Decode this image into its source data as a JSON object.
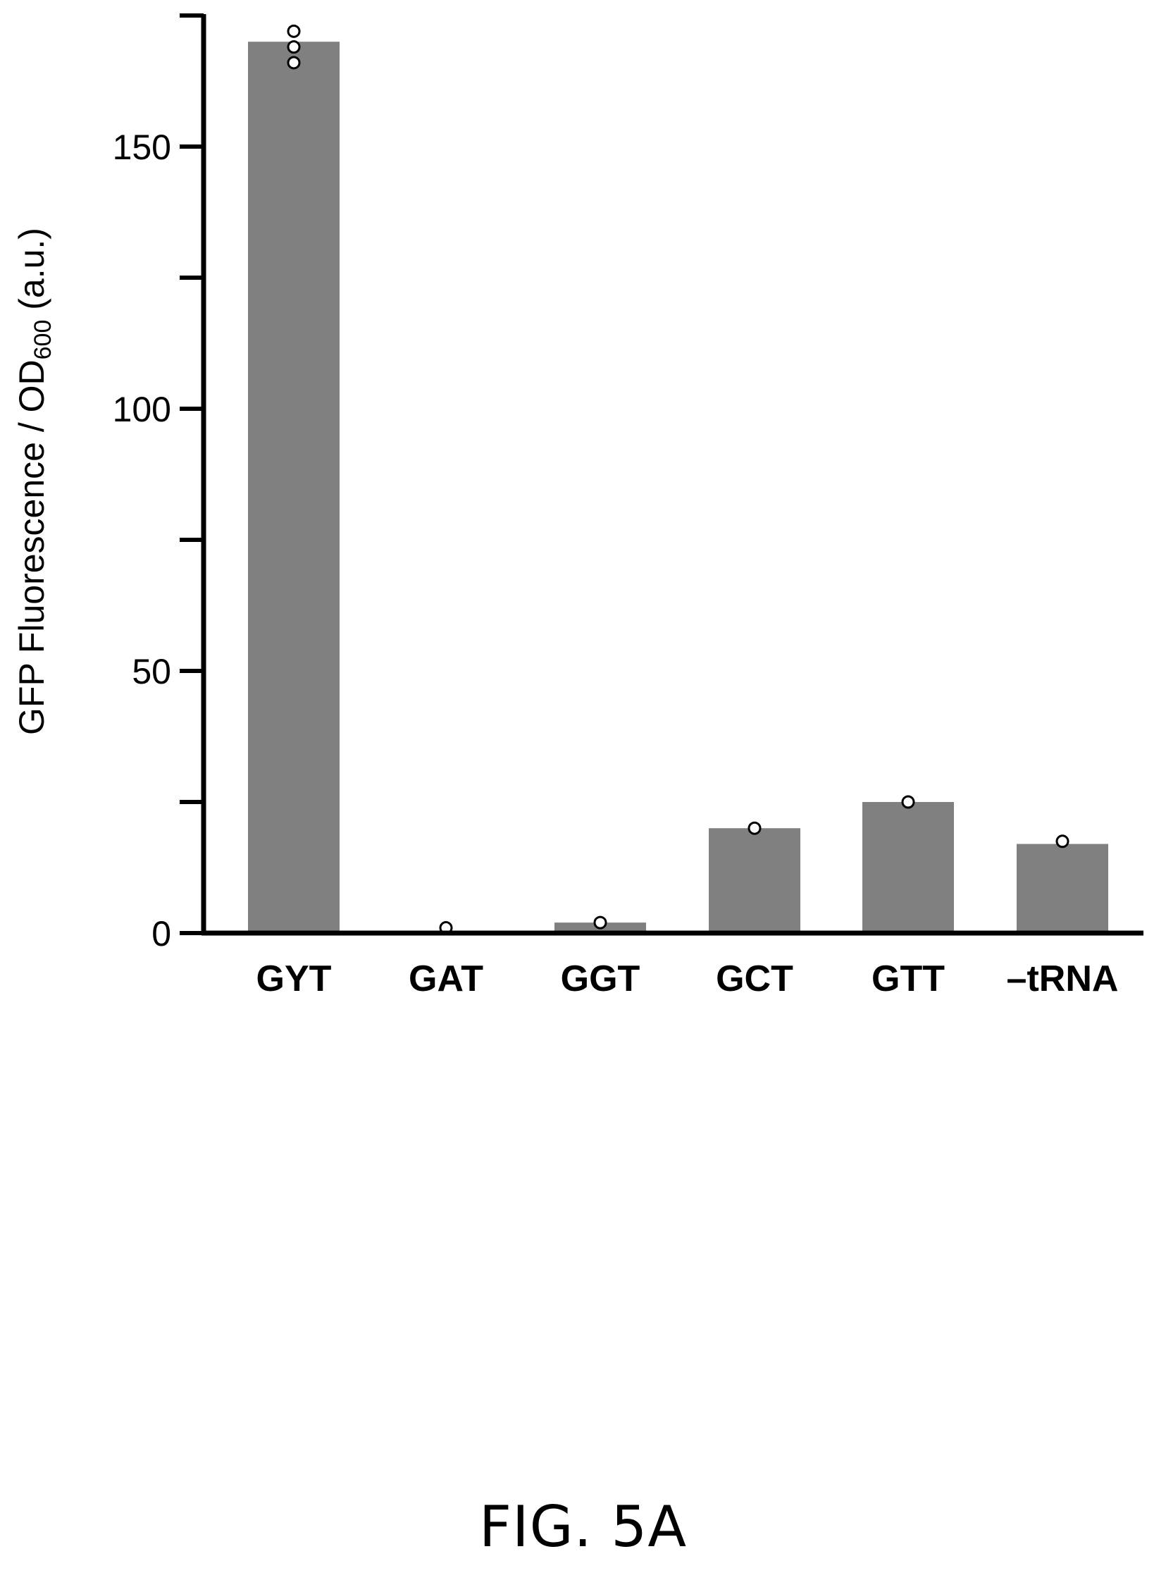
{
  "chart_data": {
    "type": "bar",
    "categories": [
      "GYT",
      "GAT",
      "GGT",
      "GCT",
      "GTT",
      "–tRNA"
    ],
    "values": [
      170,
      0,
      2,
      20,
      25,
      17
    ],
    "points": [
      [
        172,
        169,
        166
      ],
      [
        1
      ],
      [
        2
      ],
      [
        20
      ],
      [
        25
      ],
      [
        17.5
      ]
    ],
    "ylabel_main": "GFP Fluorescence / OD",
    "ylabel_sub": "600",
    "ylabel_tail": " (a.u.)",
    "ylim": [
      0,
      175
    ],
    "yticks": [
      0,
      25,
      50,
      75,
      100,
      125,
      150,
      175
    ],
    "ytick_labels": [
      "0",
      "",
      "50",
      "",
      "100",
      "",
      "150",
      ""
    ],
    "bar_color": "#808080",
    "point_fill": "#ffffff",
    "point_stroke": "#000000"
  },
  "caption": "FIG. 5A"
}
